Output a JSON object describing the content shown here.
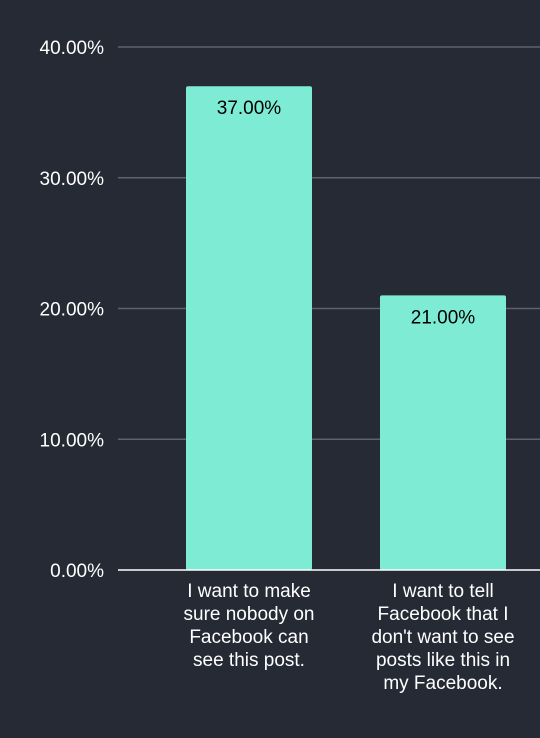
{
  "chart_data": {
    "type": "bar",
    "title": "",
    "xlabel": "",
    "ylabel": "",
    "categories": [
      [
        "I want to make",
        "sure nobody on",
        "Facebook can",
        "see this post."
      ],
      [
        "I want to tell",
        "Facebook that I",
        "don't want to see",
        "posts like this in",
        "my Facebook."
      ]
    ],
    "values": [
      37,
      21
    ],
    "value_labels": [
      "37.00%",
      "21.00%"
    ],
    "ylim": [
      0,
      40
    ],
    "yticks": [
      0,
      10,
      20,
      30,
      40
    ],
    "ytick_labels": [
      "0.00%",
      "10.00%",
      "20.00%",
      "30.00%",
      "40.00%"
    ],
    "grid": true,
    "legend": "none"
  },
  "colors": {
    "background": "#252a35",
    "bar": "#7eecd4",
    "grid": "#5d626c",
    "axis": "#ffffff",
    "text": "#ffffff",
    "data_label_text": "#000000"
  }
}
